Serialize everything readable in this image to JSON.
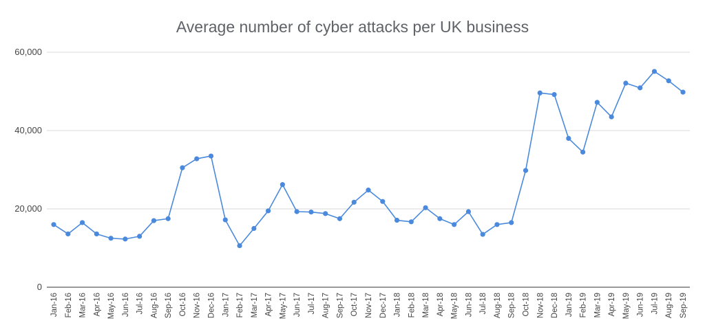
{
  "chart_data": {
    "type": "line",
    "title": "Average number of cyber attacks per UK business",
    "xlabel": "",
    "ylabel": "",
    "ylim": [
      0,
      60000
    ],
    "y_ticks": [
      "0",
      "20,000",
      "40,000",
      "60,000"
    ],
    "y_tick_values": [
      0,
      20000,
      40000,
      60000
    ],
    "grid": true,
    "legend": "none",
    "categories": [
      "Jan-16",
      "Feb-16",
      "Mar-16",
      "Apr-16",
      "May-16",
      "Jun-16",
      "Jul-16",
      "Aug-16",
      "Sep-16",
      "Oct-16",
      "Nov-16",
      "Dec-16",
      "Jan-17",
      "Feb-17",
      "Mar-17",
      "Apr-17",
      "May-17",
      "Jun-17",
      "Jul-17",
      "Aug-17",
      "Sep-17",
      "Oct-17",
      "Nov-17",
      "Dec-17",
      "Jan-18",
      "Feb-18",
      "Mar-18",
      "Apr-18",
      "May-18",
      "Jun-18",
      "Jul-18",
      "Aug-18",
      "Sep-18",
      "Oct-18",
      "Nov-18",
      "Dec-18",
      "Jan-19",
      "Feb-19",
      "Mar-19",
      "Apr-19",
      "May-19",
      "Jun-19",
      "Jul-19",
      "Aug-19",
      "Sep-19"
    ],
    "series": [
      {
        "color": "#4a89dc",
        "values": [
          16000,
          13600,
          16500,
          13600,
          12500,
          12300,
          13000,
          17000,
          17500,
          30500,
          32800,
          33500,
          17200,
          10600,
          15000,
          19500,
          26200,
          19300,
          19200,
          18800,
          17500,
          21700,
          24800,
          21900,
          17100,
          16700,
          20300,
          17500,
          16000,
          19300,
          13500,
          16000,
          16500,
          29800,
          49600,
          49200,
          38000,
          34500,
          47200,
          43500,
          52100,
          50900,
          55100,
          52700,
          49800
        ]
      }
    ]
  }
}
